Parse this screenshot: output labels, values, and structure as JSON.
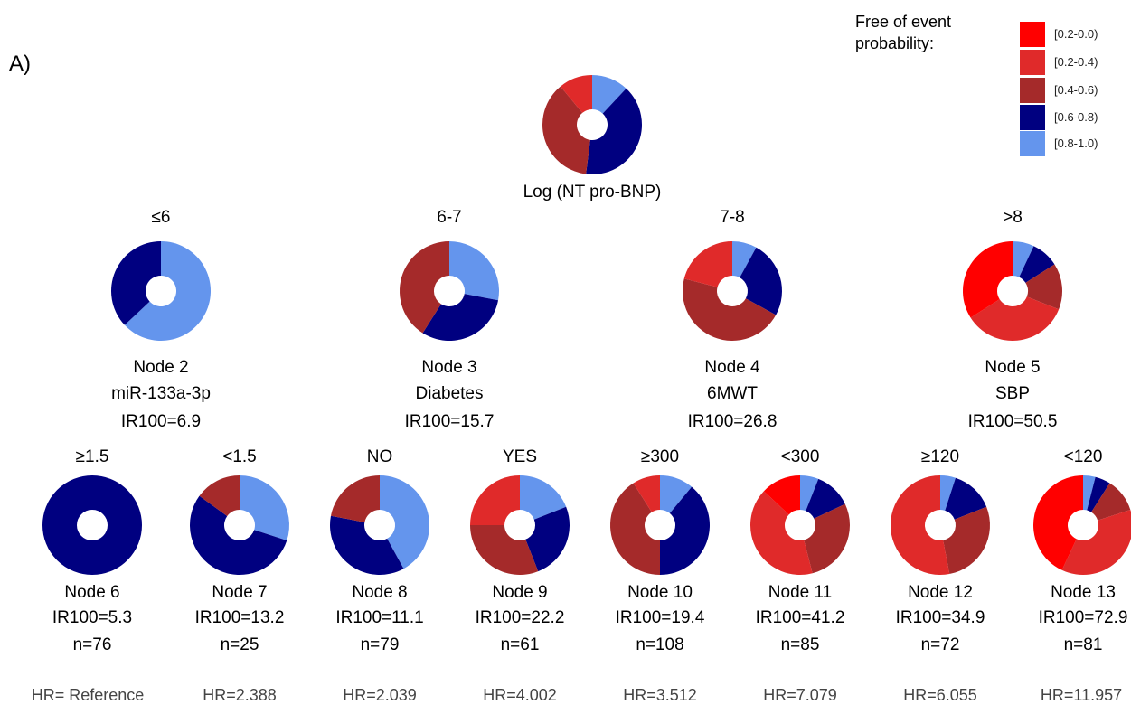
{
  "panel_label": "A)",
  "legend": {
    "title_line1": "Free of event",
    "title_line2": "probability:",
    "items": [
      {
        "label": "[0.2-0.0)",
        "color": "#ff0000"
      },
      {
        "label": "[0.2-0.4)",
        "color": "#e02a2a"
      },
      {
        "label": "[0.4-0.6)",
        "color": "#a52a2a"
      },
      {
        "label": "[0.6-0.8)",
        "color": "#000080"
      },
      {
        "label": "[0.8-1.0)",
        "color": "#6495ed"
      }
    ]
  },
  "chart_data": {
    "type": "pie",
    "subtype": "donut decision tree",
    "categories": [
      "[0.2-0.0)",
      "[0.2-0.4)",
      "[0.4-0.6)",
      "[0.6-0.8)",
      "[0.8-1.0)"
    ],
    "colors": [
      "#ff0000",
      "#e02a2a",
      "#a52a2a",
      "#000080",
      "#6495ed"
    ],
    "root": {
      "label": "Log (NT pro-BNP)",
      "values": [
        0,
        0.11,
        0.37,
        0.4,
        0.12
      ]
    },
    "level2": [
      {
        "split": "≤6",
        "node": "Node 2",
        "variable": "miR-133a-3p",
        "ir": "IR100=6.9",
        "values": [
          0,
          0,
          0,
          0.37,
          0.63
        ]
      },
      {
        "split": "6-7",
        "node": "Node 3",
        "variable": "Diabetes",
        "ir": "IR100=15.7",
        "values": [
          0,
          0,
          0.41,
          0.31,
          0.28
        ]
      },
      {
        "split": "7-8",
        "node": "Node 4",
        "variable": "6MWT",
        "ir": "IR100=26.8",
        "values": [
          0,
          0.21,
          0.46,
          0.25,
          0.08
        ]
      },
      {
        "split": ">8",
        "node": "Node 5",
        "variable": "SBP",
        "ir": "IR100=50.5",
        "values": [
          0.34,
          0.35,
          0.15,
          0.09,
          0.07
        ]
      }
    ],
    "level3": [
      {
        "split": "≥1.5",
        "node": "Node 6",
        "ir": "IR100=5.3",
        "n": "n=76",
        "hr": "HR= Reference",
        "values": [
          0,
          0,
          0,
          1.0,
          0
        ]
      },
      {
        "split": "<1.5",
        "node": "Node 7",
        "ir": "IR100=13.2",
        "n": "n=25",
        "hr": "HR=2.388",
        "values": [
          0,
          0,
          0.15,
          0.55,
          0.3
        ]
      },
      {
        "split": "NO",
        "node": "Node 8",
        "ir": "IR100=11.1",
        "n": "n=79",
        "hr": "HR=2.039",
        "values": [
          0,
          0,
          0.22,
          0.36,
          0.42
        ]
      },
      {
        "split": "YES",
        "node": "Node 9",
        "ir": "IR100=22.2",
        "n": "n=61",
        "hr": "HR=4.002",
        "values": [
          0,
          0.25,
          0.31,
          0.25,
          0.19
        ]
      },
      {
        "split": "≥300",
        "node": "Node 10",
        "ir": "IR100=19.4",
        "n": "n=108",
        "hr": "HR=3.512",
        "values": [
          0,
          0.09,
          0.41,
          0.39,
          0.11
        ]
      },
      {
        "split": "<300",
        "node": "Node 11",
        "ir": "IR100=41.2",
        "n": "n=85",
        "hr": "HR=7.079",
        "values": [
          0.13,
          0.41,
          0.28,
          0.12,
          0.06
        ]
      },
      {
        "split": "≥120",
        "node": "Node 12",
        "ir": "IR100=34.9",
        "n": "n=72",
        "hr": "HR=6.055",
        "values": [
          0,
          0.53,
          0.28,
          0.14,
          0.05
        ]
      },
      {
        "split": "<120",
        "node": "Node 13",
        "ir": "IR100=72.9",
        "n": "n=81",
        "hr": "HR=11.957",
        "values": [
          0.43,
          0.37,
          0.11,
          0.05,
          0.04
        ]
      }
    ]
  }
}
